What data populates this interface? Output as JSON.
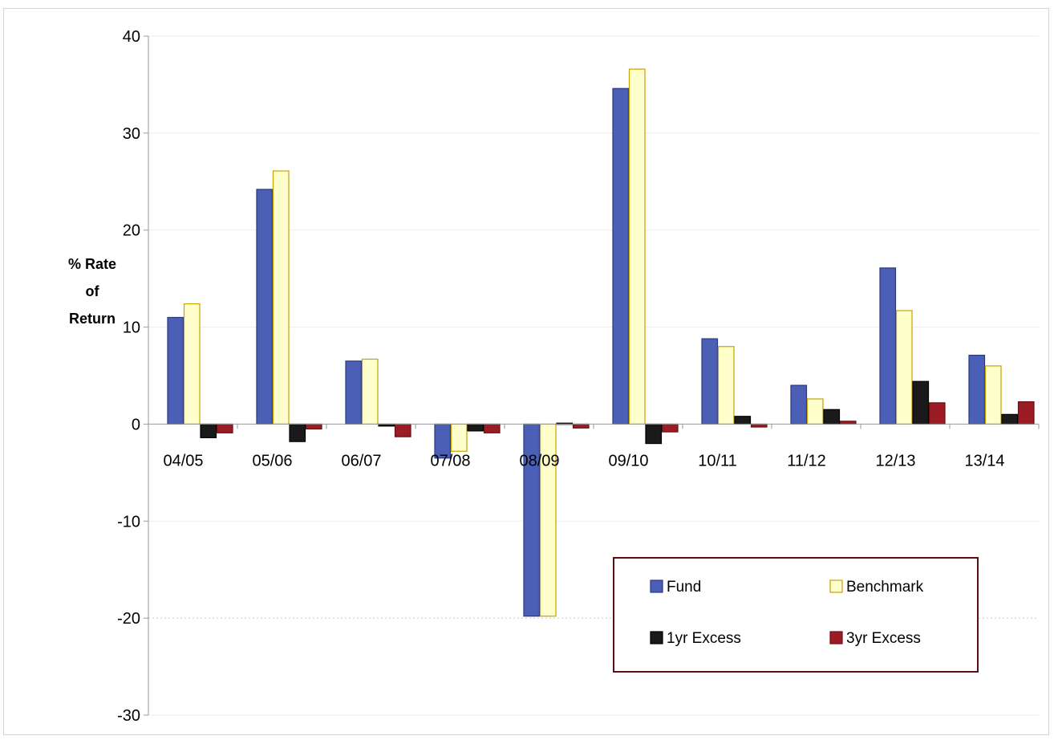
{
  "chart_data": {
    "type": "bar",
    "ylabel": [
      "% Rate",
      "of",
      "Return"
    ],
    "xlabel": "",
    "ylim": [
      -30,
      40
    ],
    "yticks": [
      40,
      30,
      20,
      10,
      0,
      -10,
      -20,
      -30
    ],
    "categories": [
      "04/05",
      "05/06",
      "06/07",
      "07/08",
      "08/09",
      "09/10",
      "10/11",
      "11/12",
      "12/13",
      "13/14"
    ],
    "series": [
      {
        "name": "Fund",
        "color": "#4a5fb5",
        "values": [
          11.0,
          24.2,
          6.5,
          -3.5,
          -19.8,
          34.6,
          8.8,
          4.0,
          16.1,
          7.1
        ]
      },
      {
        "name": "Benchmark",
        "color": "#ffffcc",
        "values": [
          12.4,
          26.1,
          6.7,
          -2.8,
          -19.8,
          36.6,
          8.0,
          2.6,
          11.7,
          6.0
        ]
      },
      {
        "name": "1yr Excess",
        "color": "#1a1a1a",
        "values": [
          -1.4,
          -1.8,
          -0.2,
          -0.7,
          0.1,
          -2.0,
          0.8,
          1.5,
          4.4,
          1.0
        ]
      },
      {
        "name": "3yr Excess",
        "color": "#9b1c24",
        "values": [
          -0.9,
          -0.5,
          -1.3,
          -0.9,
          -0.4,
          -0.8,
          -0.3,
          0.3,
          2.2,
          2.3
        ]
      }
    ],
    "legend": {
      "position": "bottom-right",
      "border_color": "#5a0f14"
    },
    "grid": true
  }
}
